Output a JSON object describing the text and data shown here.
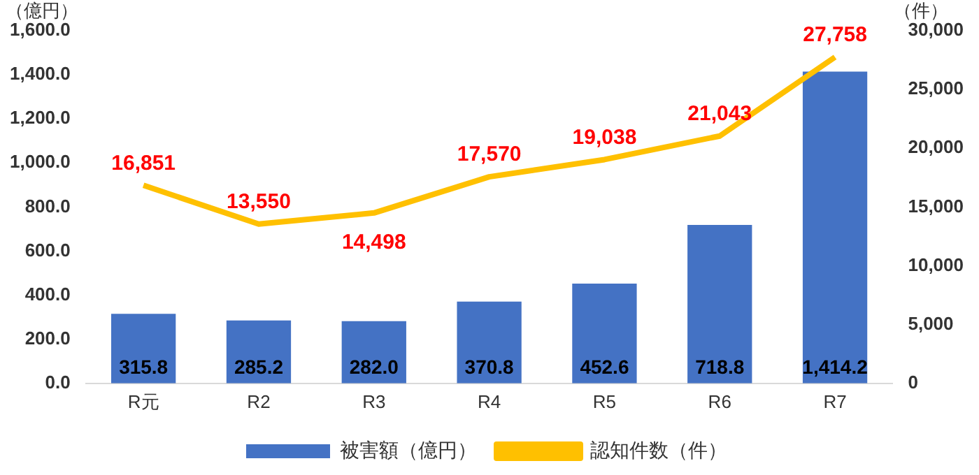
{
  "chart_data": {
    "type": "bar",
    "ylabel": "（億円）",
    "y2label": "（件）",
    "categories": [
      "R元",
      "R2",
      "R3",
      "R4",
      "R5",
      "R6",
      "R7"
    ],
    "series": [
      {
        "name": "被害額（億円）",
        "color": "#4472c4",
        "values": [
          315.8,
          285.2,
          282.0,
          370.8,
          452.6,
          718.8,
          1414.2
        ],
        "value_labels": [
          "315.8",
          "285.2",
          "282.0",
          "370.8",
          "452.6",
          "718.8",
          "1,414.2"
        ]
      },
      {
        "name": "認知件数（件）",
        "type": "line",
        "axis": "y2",
        "color": "#ffc000",
        "marker": "none",
        "values": [
          16851,
          13550,
          14498,
          17570,
          19038,
          21043,
          27758
        ],
        "value_labels": [
          "16,851",
          "13,550",
          "14,498",
          "17,570",
          "19,038",
          "21,043",
          "27,758"
        ]
      }
    ],
    "ylim": [
      0,
      1600
    ],
    "yticks": [
      {
        "value": 0,
        "label": "0.0"
      },
      {
        "value": 200,
        "label": "200.0"
      },
      {
        "value": 400,
        "label": "400.0"
      },
      {
        "value": 600,
        "label": "600.0"
      },
      {
        "value": 800,
        "label": "800.0"
      },
      {
        "value": 1000,
        "label": "1,000.0"
      },
      {
        "value": 1200,
        "label": "1,200.0"
      },
      {
        "value": 1400,
        "label": "1,400.0"
      },
      {
        "value": 1600,
        "label": "1,600.0"
      }
    ],
    "y2lim": [
      0,
      30000
    ],
    "y2ticks": [
      0,
      {
        "value": 5000,
        "label": "5,000"
      },
      {
        "value": 10000,
        "label": "10,000"
      },
      {
        "value": 15000,
        "label": "15,000"
      },
      {
        "value": 20000,
        "label": "20,000"
      },
      {
        "value": 25000,
        "label": "25,000"
      },
      {
        "value": 30000,
        "label": "30,000"
      }
    ],
    "grid": false,
    "legend": "bottom"
  }
}
